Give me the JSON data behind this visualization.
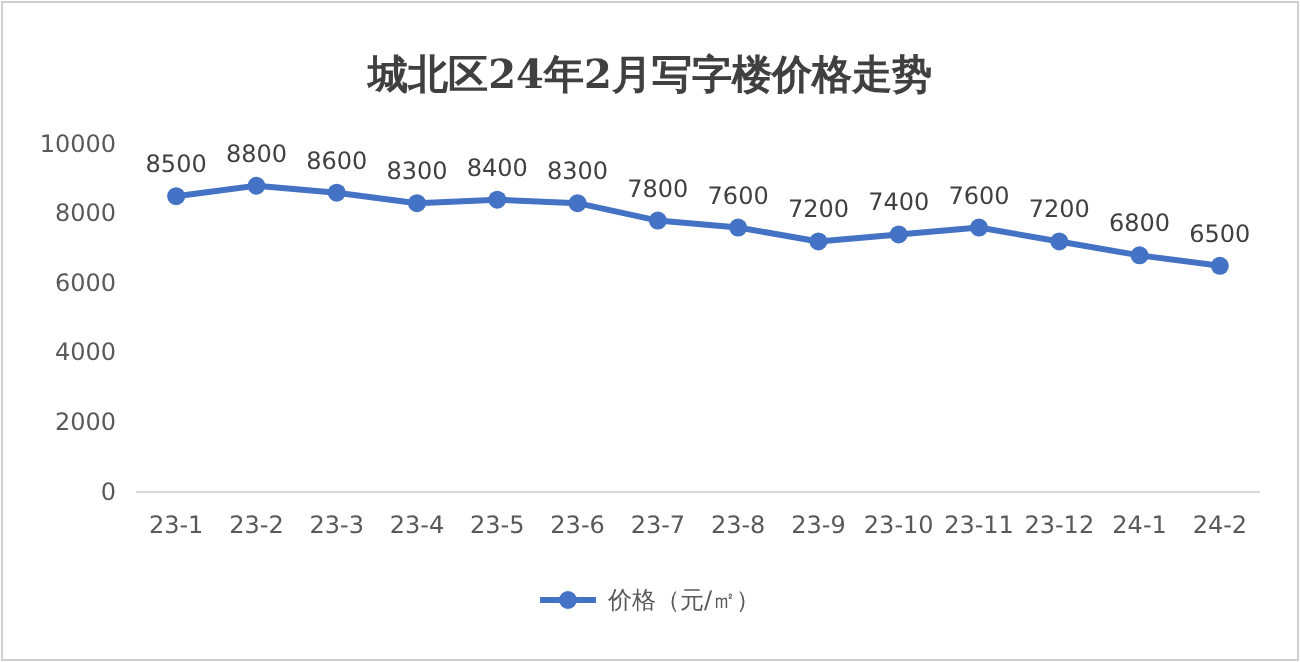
{
  "chart_data": {
    "type": "line",
    "title": "城北区24年2月写字楼价格走势",
    "categories": [
      "23-1",
      "23-2",
      "23-3",
      "23-4",
      "23-5",
      "23-6",
      "23-7",
      "23-8",
      "23-9",
      "23-10",
      "23-11",
      "23-12",
      "24-1",
      "24-2"
    ],
    "series": [
      {
        "name": "价格（元/㎡）",
        "color": "#4472c4",
        "values": [
          8500,
          8800,
          8600,
          8300,
          8400,
          8300,
          7800,
          7600,
          7200,
          7400,
          7600,
          7200,
          6800,
          6500
        ]
      }
    ],
    "ylim": [
      0,
      10000
    ],
    "yticks": [
      0,
      2000,
      4000,
      6000,
      8000,
      10000
    ],
    "data_labels": true,
    "marker": "circle",
    "line_style": "solid",
    "legend": "bottom",
    "grid": false
  }
}
